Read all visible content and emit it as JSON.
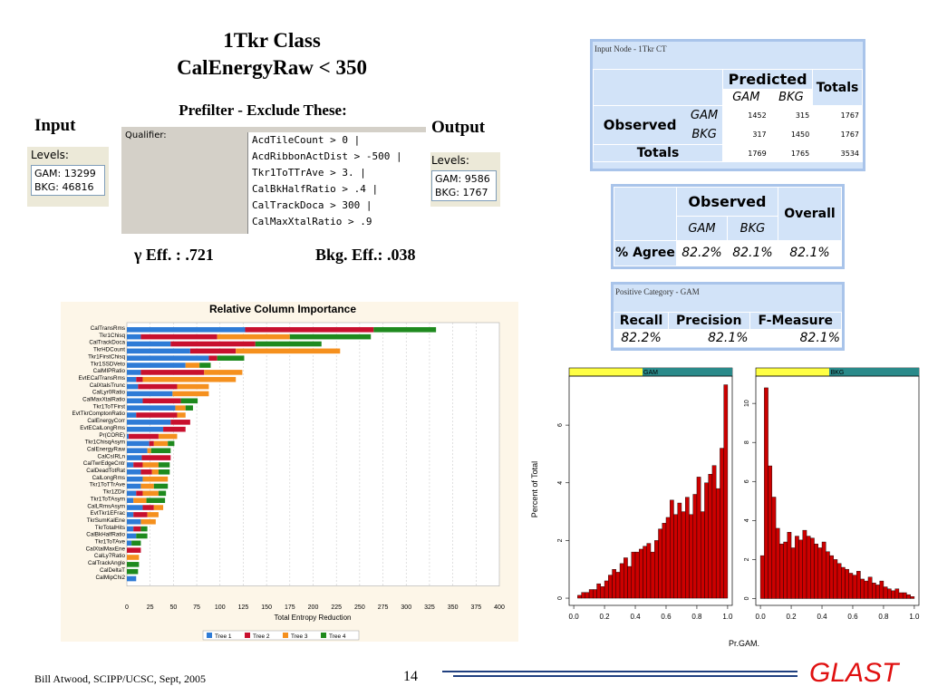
{
  "slide": {
    "title_lines": [
      "1Tkr Class",
      "CalEnergyRaw < 350"
    ],
    "prefilter": "Prefilter - Exclude These:",
    "input_label": "Input",
    "output_label": "Output",
    "gamma_eff": "γ Eff. : .721",
    "bkg_eff": "Bkg. Eff.: .038",
    "footer": "Bill Atwood,  SCIPP/UCSC, Sept, 2005",
    "page": "14",
    "logo": "GLAST"
  },
  "input_levels": {
    "title": "Levels:",
    "lines": [
      "GAM: 13299",
      "BKG: 46816"
    ]
  },
  "output_levels": {
    "title": "Levels:",
    "lines": [
      "GAM: 9586",
      "BKG: 1767"
    ]
  },
  "qualifier": {
    "label": "Qualifier:",
    "lines": [
      "AcdTileCount > 0 |",
      "AcdRibbonActDist > -500 |",
      "Tkr1ToTTrAve > 3. |",
      "CalBkHalfRatio > .4 |",
      "CalTrackDoca > 300 |",
      "CalMaxXtalRatio > .9"
    ]
  },
  "confusion": {
    "title": "Input Node - 1Tkr CT",
    "predicted": "Predicted",
    "totals_header": "Totals",
    "columns": [
      "GAM",
      "BKG"
    ],
    "observed": "Observed",
    "rows": [
      {
        "label": "GAM",
        "values": [
          1452,
          315,
          1767
        ]
      },
      {
        "label": "BKG",
        "values": [
          317,
          1450,
          1767
        ]
      }
    ],
    "totals_label": "Totals",
    "totals": [
      1769,
      1765,
      3534
    ]
  },
  "agreement": {
    "observed": "Observed",
    "overall": "Overall",
    "columns": [
      "GAM",
      "BKG"
    ],
    "row_label": "% Agree",
    "values": [
      "82.2%",
      "82.1%",
      "82.1%"
    ]
  },
  "positive": {
    "title": "Positive Category - GAM",
    "headers": [
      "Recall",
      "Precision",
      "F-Measure"
    ],
    "values": [
      "82.2%",
      "82.1%",
      "82.1%"
    ]
  },
  "chart_data": [
    {
      "type": "stacked-barh",
      "title": "Relative Column Importance",
      "xlabel": "Total Entropy Reduction",
      "xlim": [
        0,
        400
      ],
      "xticks": [
        0,
        25,
        50,
        75,
        100,
        125,
        150,
        175,
        200,
        225,
        250,
        275,
        300,
        325,
        350,
        375,
        400
      ],
      "grid": true,
      "legend": "bottom",
      "categories": [
        "CalTransRms",
        "Tkr1Chisq",
        "CalTrackDoca",
        "TkrHDCount",
        "Tkr1FirstChisq",
        "Tkr1SSDVeto",
        "CalMIPRatio",
        "EvtECalTransRms",
        "CalXtalsTrunc",
        "CalLyr0Ratio",
        "CalMaxXtalRatio",
        "Tkr1ToTFirst",
        "EvtTkrComptonRatio",
        "CalEnergyCorr",
        "EvtECalLongRms",
        "Pr(CORE)",
        "Tkr1ChisqAsym",
        "CalEnergyRaw",
        "CalCsIRLn",
        "CalTwrEdgeCntr",
        "CalDeadTotRat",
        "CalLongRms",
        "Tkr1ToTTrAve",
        "Tkr1ZDir",
        "Tkr1ToTAsym",
        "CalLRmsAsym",
        "EvtTkr1EFrac",
        "TkrSumKalEne",
        "TkrTotalHits",
        "CalBkHalfRatio",
        "Tkr1ToTAve",
        "CalXtalMaxEne",
        "CalLy7Ratio",
        "CalTrackAngle",
        "CalDeltaT",
        "CalMipChi2"
      ],
      "series": [
        {
          "name": "Tree 1",
          "color": "#2e7bd6",
          "values": [
            127,
            15,
            47,
            68,
            88,
            63,
            15,
            10,
            12,
            49,
            17,
            52,
            10,
            47,
            39,
            2,
            24,
            22,
            16,
            7,
            15,
            17,
            15,
            10,
            7,
            17,
            7,
            15,
            7,
            10,
            5,
            0,
            0,
            0,
            0,
            10
          ]
        },
        {
          "name": "Tree 2",
          "color": "#c8102e",
          "values": [
            138,
            82,
            91,
            49,
            9,
            0,
            68,
            7,
            42,
            0,
            41,
            0,
            44,
            21,
            24,
            32,
            5,
            0,
            31,
            10,
            12,
            0,
            0,
            7,
            0,
            12,
            15,
            0,
            8,
            0,
            0,
            15,
            0,
            0,
            0,
            0
          ]
        },
        {
          "name": "Tree 3",
          "color": "#f5901e",
          "values": [
            0,
            78,
            0,
            112,
            0,
            15,
            41,
            100,
            34,
            39,
            0,
            11,
            9,
            0,
            0,
            20,
            15,
            4,
            0,
            17,
            7,
            27,
            14,
            17,
            14,
            10,
            12,
            16,
            0,
            0,
            0,
            0,
            13,
            0,
            0,
            0
          ]
        },
        {
          "name": "Tree 4",
          "color": "#1e8a1e",
          "values": [
            67,
            87,
            71,
            0,
            29,
            12,
            0,
            0,
            0,
            0,
            18,
            8,
            0,
            0,
            0,
            0,
            7,
            21,
            0,
            12,
            12,
            0,
            15,
            8,
            20,
            0,
            0,
            0,
            7,
            12,
            10,
            0,
            0,
            13,
            12,
            0
          ]
        }
      ]
    },
    {
      "type": "histogram",
      "title": "GAM",
      "ylabel": "Percent of Total",
      "xlabel": "Pr.GAM.",
      "color": "#cc0000",
      "xlim": [
        -0.03,
        1.03
      ],
      "ylim": [
        -0.25,
        7.7
      ],
      "xticks": [
        {
          "value": 0,
          "label": "0.0"
        },
        {
          "value": 0.2,
          "label": "0.2"
        },
        {
          "value": 0.4,
          "label": "0.4"
        },
        {
          "value": 0.6,
          "label": "0.6"
        },
        {
          "value": 0.8,
          "label": "0.8"
        },
        {
          "value": 1,
          "label": "1.0"
        }
      ],
      "yticks": [
        0,
        2,
        4,
        6
      ],
      "bins": [
        0,
        0.025,
        0.05,
        0.075,
        0.1,
        0.125,
        0.15,
        0.175,
        0.2,
        0.225,
        0.25,
        0.275,
        0.3,
        0.325,
        0.35,
        0.375,
        0.4,
        0.425,
        0.45,
        0.475,
        0.5,
        0.525,
        0.55,
        0.575,
        0.6,
        0.625,
        0.65,
        0.675,
        0.7,
        0.725,
        0.75,
        0.775,
        0.8,
        0.825,
        0.85,
        0.875,
        0.9,
        0.925,
        0.95,
        0.975,
        1
      ],
      "values": [
        0.0,
        0.1,
        0.2,
        0.2,
        0.3,
        0.3,
        0.5,
        0.4,
        0.6,
        0.8,
        1.0,
        0.9,
        1.2,
        1.4,
        1.1,
        1.6,
        1.6,
        1.7,
        1.8,
        1.9,
        1.6,
        2.0,
        2.4,
        2.6,
        2.8,
        3.4,
        2.9,
        3.3,
        3.0,
        3.5,
        2.9,
        3.6,
        4.2,
        3.0,
        4.0,
        4.3,
        4.6,
        3.8,
        5.2,
        7.4
      ]
    },
    {
      "type": "histogram",
      "title": "BKG",
      "color": "#cc0000",
      "xlim": [
        -0.03,
        1.03
      ],
      "ylim": [
        -0.35,
        11.4
      ],
      "xticks": [
        {
          "value": 0,
          "label": "0.0"
        },
        {
          "value": 0.2,
          "label": "0.2"
        },
        {
          "value": 0.4,
          "label": "0.4"
        },
        {
          "value": 0.6,
          "label": "0.6"
        },
        {
          "value": 0.8,
          "label": "0.8"
        },
        {
          "value": 1,
          "label": "1.0"
        }
      ],
      "yticks": [
        0,
        2,
        4,
        6,
        8,
        10
      ],
      "bins": [
        0,
        0.025,
        0.05,
        0.075,
        0.1,
        0.125,
        0.15,
        0.175,
        0.2,
        0.225,
        0.25,
        0.275,
        0.3,
        0.325,
        0.35,
        0.375,
        0.4,
        0.425,
        0.45,
        0.475,
        0.5,
        0.525,
        0.55,
        0.575,
        0.6,
        0.625,
        0.65,
        0.675,
        0.7,
        0.725,
        0.75,
        0.775,
        0.8,
        0.825,
        0.85,
        0.875,
        0.9,
        0.925,
        0.95,
        0.975,
        1
      ],
      "values": [
        2.2,
        10.8,
        6.8,
        5.2,
        3.6,
        2.8,
        2.9,
        3.4,
        2.6,
        3.2,
        3.0,
        3.5,
        3.2,
        3.1,
        2.8,
        2.6,
        2.9,
        2.4,
        2.2,
        2.0,
        1.8,
        1.6,
        1.5,
        1.3,
        1.2,
        1.4,
        1.0,
        0.9,
        1.1,
        0.8,
        0.7,
        0.9,
        0.6,
        0.5,
        0.4,
        0.5,
        0.3,
        0.3,
        0.2,
        0.1
      ]
    }
  ]
}
